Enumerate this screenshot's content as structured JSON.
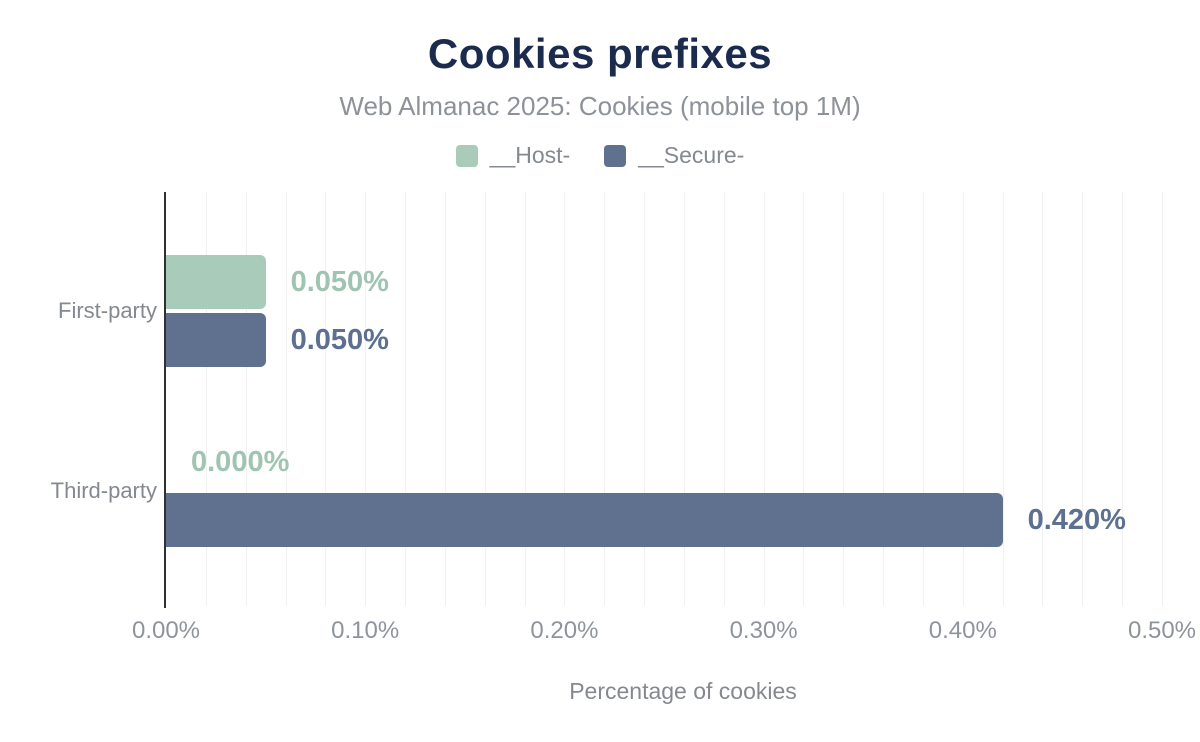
{
  "title": "Cookies prefixes",
  "subtitle": "Web Almanac 2025: Cookies (mobile top 1M)",
  "colors": {
    "title_navy": "#1b2b4d",
    "subtitle_gray": "#8d9299",
    "axis_dark": "#2e3033",
    "gridline": "#f1f1f4",
    "tick_gray": "#8f949c",
    "category_gray": "#84898f"
  },
  "chart_data": {
    "type": "bar",
    "orientation": "horizontal",
    "title": "Cookies prefixes",
    "subtitle": "Web Almanac 2025: Cookies (mobile top 1M)",
    "categories": [
      "First-party",
      "Third-party"
    ],
    "series": [
      {
        "name": "__Host-",
        "color": "#a9cbba",
        "label_color": "#a0c4b2",
        "values": [
          0.05,
          0.0
        ],
        "value_labels": [
          "0.050%",
          "0.000%"
        ]
      },
      {
        "name": "__Secure-",
        "color": "#60708f",
        "label_color": "#5d7090",
        "values": [
          0.05,
          0.42
        ],
        "value_labels": [
          "0.050%",
          "0.420%"
        ]
      }
    ],
    "xlabel": "Percentage of cookies",
    "ylabel": "",
    "xlim": [
      0,
      0.5
    ],
    "x_ticks": [
      "0.00%",
      "0.10%",
      "0.20%",
      "0.30%",
      "0.40%",
      "0.50%"
    ],
    "minor_grid_step": 0.02,
    "grid": "minor-vertical",
    "legend_position": "top",
    "value_label_position": "outside-end"
  }
}
